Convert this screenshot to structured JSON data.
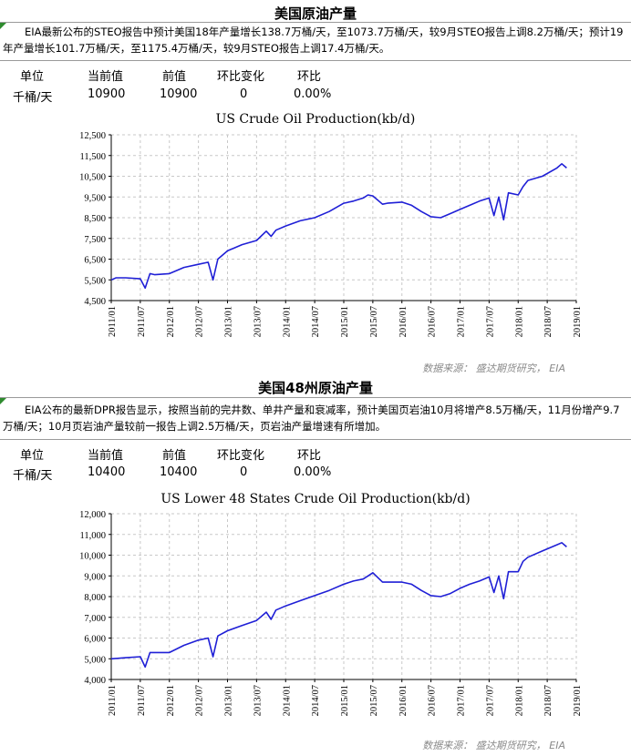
{
  "sections": [
    {
      "title": "美国原油产量",
      "description": "EIA最新公布的STEO报告中预计美国18年产量增长138.7万桶/天，至1073.7万桶/天，较9月STEO报告上调8.2万桶/天；预计19年产量增长101.7万桶/天，至1175.4万桶/天，较9月STEO报告上调17.4万桶/天。",
      "table": {
        "headers": [
          "单位",
          "当前值",
          "前值",
          "环比变化",
          "环比"
        ],
        "row": [
          "千桶/天",
          "10900",
          "10900",
          "0",
          "0.00%"
        ]
      },
      "source": "数据来源： 盛达期货研究， EIA"
    },
    {
      "title": "美国48州原油产量",
      "description": "EIA公布的最新DPR报告显示，按照当前的完井数、单井产量和衰减率，预计美国页岩油10月将增产8.5万桶/天，11月份增产9.7万桶/天；10月页岩油产量较前一报告上调2.5万桶/天，页岩油产量增速有所增加。",
      "table": {
        "headers": [
          "单位",
          "当前值",
          "前值",
          "环比变化",
          "环比"
        ],
        "row": [
          "千桶/天",
          "10400",
          "10400",
          "0",
          "0.00%"
        ]
      },
      "source": "数据来源： 盛达期货研究， EIA"
    }
  ],
  "chart_data": [
    {
      "type": "line",
      "title": "US Crude Oil Production(kb/d)",
      "line_color": "#1f1fd6",
      "grid": true,
      "ylim": [
        4500,
        12500
      ],
      "y_ticks": [
        "4,500",
        "5,500",
        "6,500",
        "7,500",
        "8,500",
        "9,500",
        "10,500",
        "11,500",
        "12,500"
      ],
      "x_ticks": [
        "2011/01",
        "2011/07",
        "2012/01",
        "2012/07",
        "2013/01",
        "2013/07",
        "2014/01",
        "2014/07",
        "2015/01",
        "2015/07",
        "2016/01",
        "2016/07",
        "2017/01",
        "2017/07",
        "2018/01",
        "2018/07",
        "2019/01"
      ],
      "x": [
        "2011/01",
        "2011/02",
        "2011/04",
        "2011/07",
        "2011/08",
        "2011/09",
        "2011/10",
        "2012/01",
        "2012/04",
        "2012/07",
        "2012/09",
        "2012/10",
        "2012/11",
        "2013/01",
        "2013/04",
        "2013/07",
        "2013/09",
        "2013/10",
        "2013/11",
        "2014/01",
        "2014/04",
        "2014/07",
        "2014/10",
        "2015/01",
        "2015/03",
        "2015/05",
        "2015/06",
        "2015/07",
        "2015/09",
        "2015/10",
        "2016/01",
        "2016/03",
        "2016/05",
        "2016/07",
        "2016/09",
        "2016/11",
        "2017/01",
        "2017/03",
        "2017/05",
        "2017/07",
        "2017/08",
        "2017/09",
        "2017/10",
        "2017/11",
        "2018/01",
        "2018/02",
        "2018/03",
        "2018/06",
        "2018/09",
        "2018/10",
        "2018/11"
      ],
      "values": [
        5500,
        5600,
        5600,
        5550,
        5100,
        5800,
        5750,
        5800,
        6100,
        6250,
        6350,
        5500,
        6500,
        6900,
        7200,
        7400,
        7850,
        7600,
        7900,
        8100,
        8350,
        8500,
        8800,
        9200,
        9300,
        9450,
        9600,
        9550,
        9150,
        9200,
        9250,
        9100,
        8800,
        8550,
        8500,
        8700,
        8900,
        9100,
        9300,
        9450,
        8600,
        9500,
        8400,
        9700,
        9600,
        10000,
        10300,
        10500,
        10900,
        11100,
        10900
      ]
    },
    {
      "type": "line",
      "title": "US Lower 48 States Crude Oil Production(kb/d)",
      "line_color": "#1f1fd6",
      "grid": true,
      "ylim": [
        4000,
        12000
      ],
      "y_ticks": [
        "4,000",
        "5,000",
        "6,000",
        "7,000",
        "8,000",
        "9,000",
        "10,000",
        "11,000",
        "12,000"
      ],
      "x_ticks": [
        "2011/01",
        "2011/07",
        "2012/01",
        "2012/07",
        "2013/01",
        "2013/07",
        "2014/01",
        "2014/07",
        "2015/01",
        "2015/07",
        "2016/01",
        "2016/07",
        "2017/01",
        "2017/07",
        "2018/01",
        "2018/07",
        "2019/01"
      ],
      "x": [
        "2011/01",
        "2011/04",
        "2011/07",
        "2011/08",
        "2011/09",
        "2012/01",
        "2012/04",
        "2012/07",
        "2012/09",
        "2012/10",
        "2012/11",
        "2013/01",
        "2013/04",
        "2013/07",
        "2013/09",
        "2013/10",
        "2013/11",
        "2014/01",
        "2014/04",
        "2014/07",
        "2014/10",
        "2015/01",
        "2015/03",
        "2015/05",
        "2015/06",
        "2015/07",
        "2015/09",
        "2015/10",
        "2016/01",
        "2016/03",
        "2016/05",
        "2016/07",
        "2016/09",
        "2016/11",
        "2017/01",
        "2017/03",
        "2017/05",
        "2017/07",
        "2017/08",
        "2017/09",
        "2017/10",
        "2017/11",
        "2018/01",
        "2018/02",
        "2018/03",
        "2018/06",
        "2018/09",
        "2018/10",
        "2018/11"
      ],
      "values": [
        5000,
        5050,
        5100,
        4600,
        5300,
        5300,
        5650,
        5900,
        6000,
        5100,
        6100,
        6350,
        6600,
        6850,
        7250,
        6900,
        7350,
        7550,
        7800,
        8050,
        8300,
        8600,
        8750,
        8850,
        9000,
        9150,
        8700,
        8700,
        8700,
        8600,
        8300,
        8050,
        8000,
        8150,
        8400,
        8600,
        8750,
        8950,
        8200,
        9000,
        7900,
        9200,
        9200,
        9700,
        9900,
        10200,
        10500,
        10600,
        10400
      ]
    }
  ]
}
